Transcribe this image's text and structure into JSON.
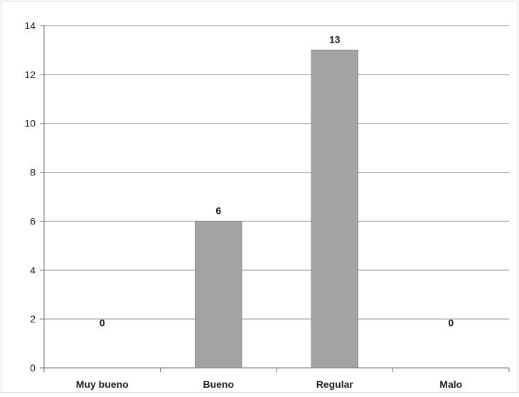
{
  "chart_data": {
    "type": "bar",
    "title": "",
    "xlabel": "",
    "ylabel": "",
    "categories": [
      "Muy bueno",
      "Bueno",
      "Regular",
      "Malo"
    ],
    "values": [
      0,
      6,
      13,
      0
    ],
    "data_labels": [
      "0",
      "6",
      "13",
      "0"
    ],
    "ylim": [
      0,
      14
    ],
    "yticks": [
      0,
      2,
      4,
      6,
      8,
      10,
      12,
      14
    ],
    "grid": true,
    "legend": "none",
    "colors": {
      "bar": "#a3a3a3",
      "bar_edge": "#8a8a8a",
      "grid": "#8c8c8c",
      "axis": "#6e6e6e",
      "text": "#1e1e1e"
    }
  }
}
